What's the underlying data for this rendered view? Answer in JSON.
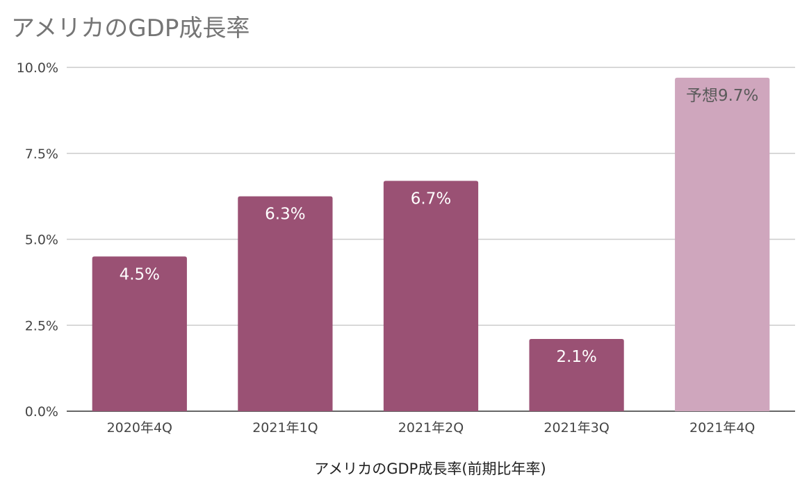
{
  "chart_data": {
    "type": "bar",
    "title": "アメリカのGDP成長率",
    "xlabel": "アメリカのGDP成長率(前期比年率)",
    "ylabel": "",
    "ylim": [
      0,
      10
    ],
    "y_ticks": [
      {
        "value": 0,
        "label": "0.0%"
      },
      {
        "value": 2.5,
        "label": "2.5%"
      },
      {
        "value": 5,
        "label": "5.0%"
      },
      {
        "value": 7.5,
        "label": "7.5%"
      },
      {
        "value": 10,
        "label": "10.0%"
      }
    ],
    "grid": true,
    "legend": "none",
    "categories": [
      "2020年4Q",
      "2021年1Q",
      "2021年2Q",
      "2021年3Q",
      "2021年4Q"
    ],
    "values": [
      4.5,
      6.25,
      6.7,
      2.1,
      9.7
    ],
    "data_labels": [
      "4.5%",
      "6.3%",
      "6.7%",
      "2.1%",
      "予想9.7%"
    ],
    "bar_colors": [
      "#9a5174",
      "#9a5174",
      "#9a5174",
      "#9a5174",
      "#cfa6bd"
    ],
    "label_colors": [
      "#ffffff",
      "#ffffff",
      "#ffffff",
      "#ffffff",
      "#5a5a5a"
    ]
  }
}
